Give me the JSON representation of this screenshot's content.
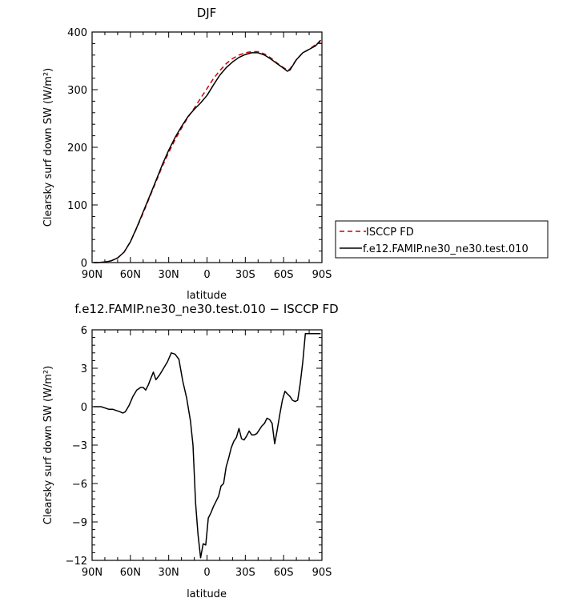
{
  "chart_data": [
    {
      "type": "line",
      "title": "DJF",
      "xlabel": "latitude",
      "ylabel": "Clearsky surf down SW (W/m²)",
      "xlim": [
        -90,
        90
      ],
      "ylim": [
        0,
        400
      ],
      "x_ticks": [
        "90N",
        "60N",
        "30N",
        "0",
        "30S",
        "60S",
        "90S"
      ],
      "y_ticks": [
        "0",
        "100",
        "200",
        "300",
        "400"
      ],
      "legend_position": "right",
      "series": [
        {
          "name": "ISCCP FD",
          "color": "#cc0000",
          "dash": "dashed",
          "x": [
            -89,
            -85,
            -80,
            -75,
            -70,
            -65,
            -60,
            -55,
            -50,
            -45,
            -40,
            -35,
            -30,
            -25,
            -20,
            -15,
            -10,
            -5,
            0,
            5,
            10,
            15,
            20,
            25,
            30,
            35,
            40,
            45,
            50,
            55,
            60,
            63,
            65,
            70,
            75,
            80,
            85,
            89
          ],
          "y": [
            0,
            0,
            1,
            3,
            8,
            18,
            36,
            60,
            86,
            113,
            140,
            167,
            191,
            213,
            233,
            252,
            268,
            285,
            302,
            319,
            333,
            345,
            354,
            360,
            364,
            366,
            366,
            362,
            355,
            346,
            338,
            334,
            336,
            352,
            364,
            370,
            378,
            382
          ]
        },
        {
          "name": "f.e12.FAMIP.ne30_ne30.test.010",
          "color": "#000000",
          "dash": "solid",
          "x": [
            -89,
            -85,
            -80,
            -75,
            -70,
            -65,
            -60,
            -55,
            -50,
            -45,
            -40,
            -35,
            -30,
            -25,
            -20,
            -15,
            -10,
            -5,
            0,
            5,
            10,
            15,
            20,
            25,
            30,
            35,
            40,
            45,
            50,
            55,
            60,
            63,
            65,
            70,
            75,
            80,
            85,
            89
          ],
          "y": [
            0,
            0,
            1,
            3,
            8,
            18,
            36,
            61,
            88,
            115,
            142,
            170,
            195,
            217,
            236,
            253,
            266,
            277,
            290,
            308,
            325,
            338,
            348,
            356,
            361,
            364,
            364,
            360,
            353,
            345,
            337,
            332,
            334,
            352,
            364,
            370,
            376,
            386
          ]
        }
      ]
    },
    {
      "type": "line",
      "title": "f.e12.FAMIP.ne30_ne30.test.010 − ISCCP FD",
      "xlabel": "latitude",
      "ylabel": "Clearsky surf down SW (W/m²)",
      "xlim": [
        -90,
        90
      ],
      "ylim": [
        -12,
        6
      ],
      "x_ticks": [
        "90N",
        "60N",
        "30N",
        "0",
        "30S",
        "60S",
        "90S"
      ],
      "y_ticks": [
        "−12",
        "−9",
        "−6",
        "−3",
        "0",
        "3",
        "6"
      ],
      "series": [
        {
          "color": "#000000",
          "x": [
            -89,
            -86,
            -83,
            -80,
            -77,
            -74,
            -71,
            -68,
            -66,
            -64,
            -61,
            -58,
            -55,
            -52,
            -50,
            -48,
            -46,
            -44,
            -42,
            -40,
            -37,
            -34,
            -31,
            -28,
            -25,
            -22,
            -19,
            -16,
            -13,
            -11,
            -9,
            -7,
            -5,
            -3,
            -1,
            1,
            3,
            5,
            7,
            9,
            11,
            13,
            15,
            17,
            19,
            21,
            23,
            25,
            27,
            29,
            31,
            33,
            35,
            37,
            39,
            41,
            43,
            45,
            47,
            49,
            51,
            53,
            55,
            57,
            59,
            61,
            63,
            65,
            67,
            69,
            71,
            73,
            75,
            77,
            79,
            81,
            83,
            85,
            87,
            89
          ],
          "y": [
            0,
            0,
            0,
            -0.1,
            -0.2,
            -0.2,
            -0.3,
            -0.4,
            -0.5,
            -0.4,
            0.1,
            0.8,
            1.3,
            1.5,
            1.5,
            1.3,
            1.7,
            2.2,
            2.7,
            2.1,
            2.5,
            3.0,
            3.5,
            4.2,
            4.1,
            3.7,
            2.0,
            0.7,
            -1.1,
            -3.0,
            -7.5,
            -10.0,
            -11.8,
            -10.7,
            -10.8,
            -8.7,
            -8.3,
            -7.8,
            -7.4,
            -7.0,
            -6.2,
            -6.0,
            -4.7,
            -4.0,
            -3.2,
            -2.7,
            -2.4,
            -1.7,
            -2.5,
            -2.6,
            -2.3,
            -1.9,
            -2.2,
            -2.2,
            -2.1,
            -1.8,
            -1.5,
            -1.3,
            -0.9,
            -1.0,
            -1.3,
            -2.9,
            -1.8,
            -0.6,
            0.5,
            1.2,
            1.0,
            0.8,
            0.5,
            0.4,
            0.5,
            1.8,
            3.5,
            5.7,
            5.7,
            5.7,
            5.7,
            5.7,
            5.7,
            5.7
          ]
        }
      ]
    }
  ]
}
